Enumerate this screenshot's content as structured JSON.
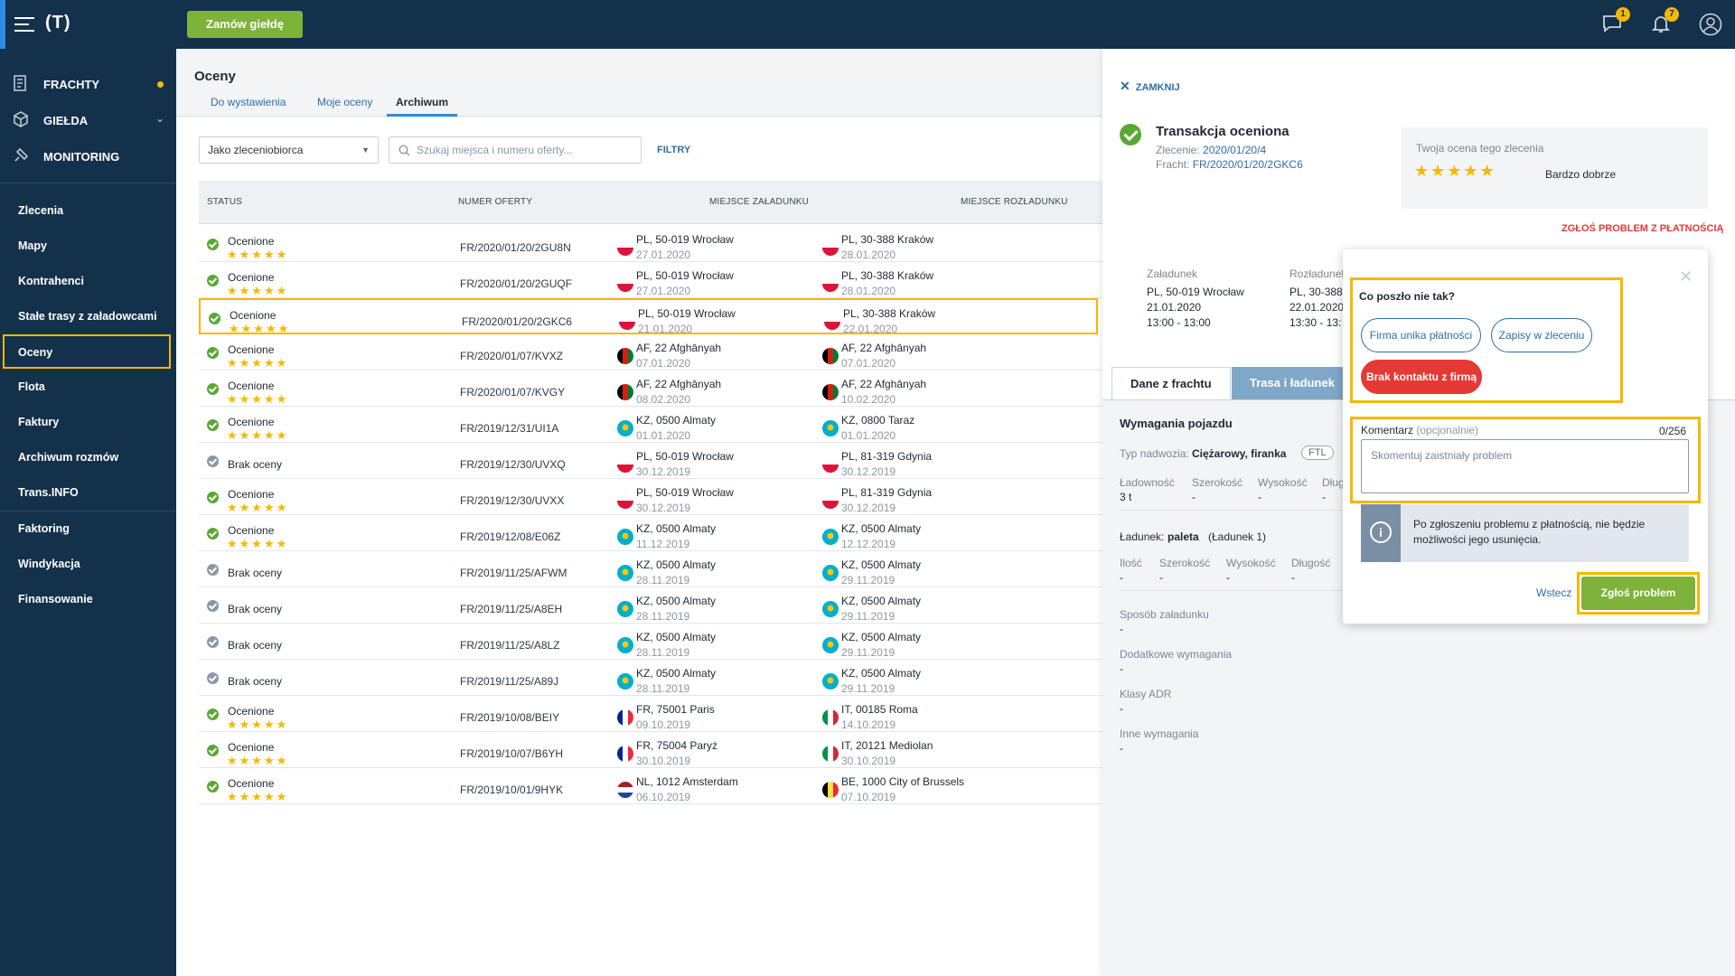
{
  "topbar": {
    "order_button": "Zamów giełdę",
    "messages_badge": "1",
    "notifications_badge": "7",
    "colors": {
      "bar": "#14314b",
      "accent": "#7db33a",
      "badge": "#f5b800"
    }
  },
  "sidebar": {
    "main": [
      {
        "label": "FRACHTY"
      },
      {
        "label": "GIEŁDA"
      },
      {
        "label": "MONITORING"
      }
    ],
    "items": [
      {
        "label": "Zlecenia"
      },
      {
        "label": "Mapy"
      },
      {
        "label": "Kontrahenci"
      },
      {
        "label": "Stałe trasy z załadowcami"
      },
      {
        "label": "Oceny"
      },
      {
        "label": "Flota"
      },
      {
        "label": "Faktury"
      },
      {
        "label": "Archiwum rozmów"
      },
      {
        "label": "Trans.INFO"
      },
      {
        "label": "Faktoring"
      },
      {
        "label": "Windykacja"
      },
      {
        "label": "Finansowanie"
      }
    ]
  },
  "main": {
    "title": "Oceny",
    "tabs": [
      "Do wystawienia",
      "Moje oceny",
      "Archiwum"
    ],
    "role_select": "Jako zleceniobiorca",
    "search_placeholder": "Szukaj miejsca i numeru oferty...",
    "filters_link": "FILTRY",
    "columns": [
      "STATUS",
      "NUMER OFERTY",
      "MIEJSCE ZAŁADUNKU",
      "MIEJSCE ROZŁADUNKU"
    ],
    "rows": [
      {
        "status": "Ocenione",
        "rated": true,
        "offer": "FR/2020/01/20/2GU8N",
        "load": "PL, 50-019 Wrocław",
        "load_date": "27.01.2020",
        "load_flag": "pl",
        "unload": "PL, 30-388 Kraków",
        "unload_date": "28.01.2020",
        "unload_flag": "pl"
      },
      {
        "status": "Ocenione",
        "rated": true,
        "offer": "FR/2020/01/20/2GUQF",
        "load": "PL, 50-019 Wrocław",
        "load_date": "27.01.2020",
        "load_flag": "pl",
        "unload": "PL, 30-388 Kraków",
        "unload_date": "28.01.2020",
        "unload_flag": "pl"
      },
      {
        "status": "Ocenione",
        "rated": true,
        "offer": "FR/2020/01/20/2GKC6",
        "load": "PL, 50-019 Wrocław",
        "load_date": "21.01.2020",
        "load_flag": "pl",
        "unload": "PL, 30-388 Kraków",
        "unload_date": "22.01.2020",
        "unload_flag": "pl",
        "highlighted": true
      },
      {
        "status": "Ocenione",
        "rated": true,
        "offer": "FR/2020/01/07/KVXZ",
        "load": "AF, 22 Afghānyah",
        "load_date": "07.01.2020",
        "load_flag": "af",
        "unload": "AF, 22 Afghānyah",
        "unload_date": "07.01.2020",
        "unload_flag": "af"
      },
      {
        "status": "Ocenione",
        "rated": true,
        "offer": "FR/2020/01/07/KVGY",
        "load": "AF, 22 Afghānyah",
        "load_date": "08.02.2020",
        "load_flag": "af",
        "unload": "AF, 22 Afghānyah",
        "unload_date": "10.02.2020",
        "unload_flag": "af"
      },
      {
        "status": "Ocenione",
        "rated": true,
        "offer": "FR/2019/12/31/UI1A",
        "load": "KZ, 0500 Almaty",
        "load_date": "01.01.2020",
        "load_flag": "kz",
        "unload": "KZ, 0800 Taraz",
        "unload_date": "01.01.2020",
        "unload_flag": "kz"
      },
      {
        "status": "Brak oceny",
        "rated": false,
        "offer": "FR/2019/12/30/UVXQ",
        "load": "PL, 50-019 Wrocław",
        "load_date": "30.12.2019",
        "load_flag": "pl",
        "unload": "PL, 81-319 Gdynia",
        "unload_date": "30.12.2019",
        "unload_flag": "pl"
      },
      {
        "status": "Ocenione",
        "rated": true,
        "offer": "FR/2019/12/30/UVXX",
        "load": "PL, 50-019 Wrocław",
        "load_date": "30.12.2019",
        "load_flag": "pl",
        "unload": "PL, 81-319 Gdynia",
        "unload_date": "30.12.2019",
        "unload_flag": "pl"
      },
      {
        "status": "Ocenione",
        "rated": true,
        "offer": "FR/2019/12/08/E06Z",
        "load": "KZ, 0500 Almaty",
        "load_date": "11.12.2019",
        "load_flag": "kz",
        "unload": "KZ, 0500 Almaty",
        "unload_date": "12.12.2019",
        "unload_flag": "kz"
      },
      {
        "status": "Brak oceny",
        "rated": false,
        "offer": "FR/2019/11/25/AFWM",
        "load": "KZ, 0500 Almaty",
        "load_date": "28.11.2019",
        "load_flag": "kz",
        "unload": "KZ, 0500 Almaty",
        "unload_date": "29.11.2019",
        "unload_flag": "kz"
      },
      {
        "status": "Brak oceny",
        "rated": false,
        "offer": "FR/2019/11/25/A8EH",
        "load": "KZ, 0500 Almaty",
        "load_date": "28.11.2019",
        "load_flag": "kz",
        "unload": "KZ, 0500 Almaty",
        "unload_date": "29.11.2019",
        "unload_flag": "kz"
      },
      {
        "status": "Brak oceny",
        "rated": false,
        "offer": "FR/2019/11/25/A8LZ",
        "load": "KZ, 0500 Almaty",
        "load_date": "28.11.2019",
        "load_flag": "kz",
        "unload": "KZ, 0500 Almaty",
        "unload_date": "29.11.2019",
        "unload_flag": "kz"
      },
      {
        "status": "Brak oceny",
        "rated": false,
        "offer": "FR/2019/11/25/A89J",
        "load": "KZ, 0500 Almaty",
        "load_date": "28.11.2019",
        "load_flag": "kz",
        "unload": "KZ, 0500 Almaty",
        "unload_date": "29.11.2019",
        "unload_flag": "kz"
      },
      {
        "status": "Ocenione",
        "rated": true,
        "offer": "FR/2019/10/08/BEIY",
        "load": "FR, 75001 Paris",
        "load_date": "09.10.2019",
        "load_flag": "fr",
        "unload": "IT, 00185 Roma",
        "unload_date": "14.10.2019",
        "unload_flag": "it"
      },
      {
        "status": "Ocenione",
        "rated": true,
        "offer": "FR/2019/10/07/B6YH",
        "load": "FR, 75004 Paryż",
        "load_date": "30.10.2019",
        "load_flag": "fr",
        "unload": "IT, 20121 Mediolan",
        "unload_date": "30.10.2019",
        "unload_flag": "it"
      },
      {
        "status": "Ocenione",
        "rated": true,
        "offer": "FR/2019/10/01/9HYK",
        "load": "NL, 1012 Amsterdam",
        "load_date": "06.10.2019",
        "load_flag": "nl",
        "unload": "BE, 1000 City of Brussels",
        "unload_date": "07.10.2019",
        "unload_flag": "be"
      }
    ]
  },
  "panel": {
    "close_label": "ZAMKNIJ",
    "title": "Transakcja oceniona",
    "order_label": "Zlecenie:",
    "order_value": "2020/01/20/4",
    "freight_label": "Fracht:",
    "freight_value": "FR/2020/01/20/2GKC6",
    "rating_title": "Twoja ocena tego zlecenia",
    "rating_stars": 5,
    "rating_label": "Bardzo dobrze",
    "report_link": "ZGŁOŚ PROBLEM Z PŁATNOŚCIĄ",
    "loading": {
      "header": "Załadunek",
      "place": "PL, 50-019 Wrocław",
      "date": "21.01.2020",
      "time": "13:00 - 13:00"
    },
    "unloading": {
      "header": "Rozładunek",
      "place": "PL, 30-388",
      "date": "22.01.2020",
      "time": "13:30 - 13:"
    },
    "tabs": [
      "Dane z frachtu",
      "Trasa i ładunek"
    ],
    "vehicle_header": "Wymagania pojazdu",
    "body_type_label": "Typ nadwozia:",
    "body_type_value": "Ciężarowy, firanka",
    "body_chip": "FTL",
    "vehicle_fields": [
      {
        "label": "Ładowność",
        "value": "3 t"
      },
      {
        "label": "Szerokość",
        "value": "-"
      },
      {
        "label": "Wysokość",
        "value": "-"
      },
      {
        "label": "Dług",
        "value": "-"
      }
    ],
    "cargo_label": "Ładunek:",
    "cargo_value": "paleta",
    "cargo_count": "(Ładunek 1)",
    "cargo_fields": [
      {
        "label": "Ilość",
        "value": "-"
      },
      {
        "label": "Szerokość",
        "value": "-"
      },
      {
        "label": "Wysokość",
        "value": "-"
      },
      {
        "label": "Długość",
        "value": "-"
      }
    ],
    "extra_fields": [
      {
        "label": "Sposób załadunku",
        "value": "-"
      },
      {
        "label": "Dodatkowe wymagania",
        "value": "-"
      },
      {
        "label": "Klasy ADR",
        "value": "-"
      },
      {
        "label": "Inne wymagania",
        "value": "-"
      }
    ]
  },
  "popup": {
    "question": "Co poszło nie tak?",
    "reasons": [
      "Firma unika płatności",
      "Zapisy w zleceniu",
      "Brak kontaktu z firmą"
    ],
    "selected_reason": "Brak kontaktu z firmą",
    "comment_label": "Komentarz",
    "comment_optional": "(opcjonalnie)",
    "counter": "0/256",
    "comment_placeholder": "Skomentuj zaistniały problem",
    "info": "Po zgłoszeniu problemu z płatnością, nie będzie możliwości jego usunięcia.",
    "back": "Wstecz",
    "submit": "Zgłoś problem",
    "colors": {
      "highlight": "#f5b800",
      "danger": "#e53935"
    }
  }
}
